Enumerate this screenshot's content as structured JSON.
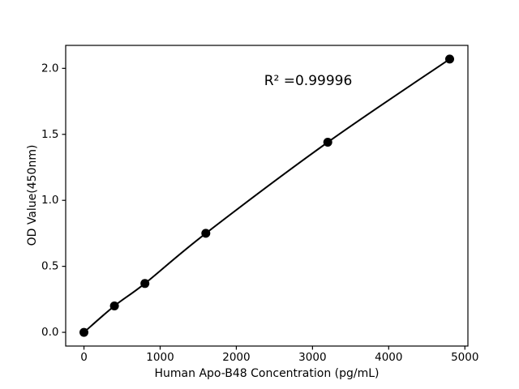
{
  "chart_data": {
    "type": "line",
    "title": "",
    "xlabel": "Human Apo-B48 Concentration (pg/mL)",
    "ylabel": "OD Value(450nm)",
    "x": [
      0,
      400,
      800,
      1600,
      3200,
      4800
    ],
    "y": [
      0.0,
      0.2,
      0.37,
      0.75,
      1.44,
      2.07
    ],
    "annotation": {
      "text": "R² =0.99996",
      "x": 2940,
      "y": 1.9
    },
    "xticks": {
      "values": [
        0,
        1000,
        2000,
        3000,
        4000,
        5000
      ],
      "labels": [
        "0",
        "1000",
        "2000",
        "3000",
        "4000",
        "5000"
      ]
    },
    "yticks": {
      "values": [
        0,
        0.5,
        1.0,
        1.5,
        2.0
      ],
      "labels": [
        "0.0",
        "0.5",
        "1.0",
        "1.5",
        "2.0"
      ]
    },
    "xlim": [
      -240,
      5040
    ],
    "ylim": [
      -0.104,
      2.174
    ],
    "grid": false,
    "legend_position": "none",
    "line_color": "#000000",
    "marker_color": "#000000",
    "axis_color": "#000000",
    "background": "#ffffff"
  }
}
